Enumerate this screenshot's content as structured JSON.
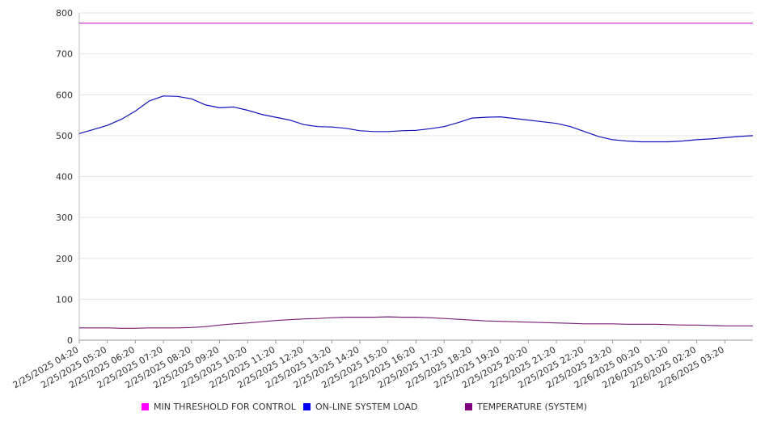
{
  "chart_data": {
    "type": "line",
    "title": "",
    "xlabel": "",
    "ylabel": "",
    "ylim": [
      0,
      800
    ],
    "yticks": [
      0,
      100,
      200,
      300,
      400,
      500,
      600,
      700,
      800
    ],
    "grid": true,
    "legend_position": "bottom",
    "x_tick_labels": [
      "2/25/2025 04:20",
      "2/25/2025 05:20",
      "2/25/2025 06:20",
      "2/25/2025 07:20",
      "2/25/2025 08:20",
      "2/25/2025 09:20",
      "2/25/2025 10:20",
      "2/25/2025 11:20",
      "2/25/2025 12:20",
      "2/25/2025 13:20",
      "2/25/2025 14:20",
      "2/25/2025 15:20",
      "2/25/2025 16:20",
      "2/25/2025 17:20",
      "2/25/2025 18:20",
      "2/25/2025 19:20",
      "2/25/2025 20:20",
      "2/25/2025 21:20",
      "2/25/2025 22:20",
      "2/25/2025 23:20",
      "2/26/2025 00:20",
      "2/26/2025 01:20",
      "2/26/2025 02:20",
      "2/26/2025 03:20"
    ],
    "x_range": [
      "2/25/2025 04:20",
      "2/26/2025 04:20"
    ],
    "x": [
      "2/25/2025 04:20",
      "2/25/2025 04:50",
      "2/25/2025 05:20",
      "2/25/2025 05:50",
      "2/25/2025 06:20",
      "2/25/2025 06:50",
      "2/25/2025 07:20",
      "2/25/2025 07:50",
      "2/25/2025 08:20",
      "2/25/2025 08:50",
      "2/25/2025 09:20",
      "2/25/2025 09:50",
      "2/25/2025 10:20",
      "2/25/2025 10:50",
      "2/25/2025 11:20",
      "2/25/2025 11:50",
      "2/25/2025 12:20",
      "2/25/2025 12:50",
      "2/25/2025 13:20",
      "2/25/2025 13:50",
      "2/25/2025 14:20",
      "2/25/2025 14:50",
      "2/25/2025 15:20",
      "2/25/2025 15:50",
      "2/25/2025 16:20",
      "2/25/2025 16:50",
      "2/25/2025 17:20",
      "2/25/2025 17:50",
      "2/25/2025 18:20",
      "2/25/2025 18:50",
      "2/25/2025 19:20",
      "2/25/2025 19:50",
      "2/25/2025 20:20",
      "2/25/2025 20:50",
      "2/25/2025 21:20",
      "2/25/2025 21:50",
      "2/25/2025 22:20",
      "2/25/2025 22:50",
      "2/25/2025 23:20",
      "2/25/2025 23:50",
      "2/26/2025 00:20",
      "2/26/2025 00:50",
      "2/26/2025 01:20",
      "2/26/2025 01:50",
      "2/26/2025 02:20",
      "2/26/2025 02:50",
      "2/26/2025 03:20",
      "2/26/2025 03:50",
      "2/26/2025 04:20"
    ],
    "series": [
      {
        "name": "MIN THRESHOLD FOR CONTROL",
        "color": "#cc22cc",
        "values": [
          775,
          775,
          775,
          775,
          775,
          775,
          775,
          775,
          775,
          775,
          775,
          775,
          775,
          775,
          775,
          775,
          775,
          775,
          775,
          775,
          775,
          775,
          775,
          775,
          775,
          775,
          775,
          775,
          775,
          775,
          775,
          775,
          775,
          775,
          775,
          775,
          775,
          775,
          775,
          775,
          775,
          775,
          775,
          775,
          775,
          775,
          775,
          775,
          775
        ]
      },
      {
        "name": "ON-LINE SYSTEM LOAD",
        "color": "#1111bb",
        "values": [
          505,
          515,
          525,
          540,
          560,
          585,
          597,
          596,
          590,
          575,
          568,
          570,
          562,
          552,
          545,
          538,
          527,
          522,
          521,
          518,
          512,
          510,
          510,
          512,
          513,
          517,
          522,
          532,
          543,
          545,
          546,
          542,
          538,
          534,
          530,
          522,
          510,
          498,
          490,
          487,
          485,
          485,
          485,
          487,
          490,
          492,
          495,
          498,
          500
        ]
      },
      {
        "name": "TEMPERATURE (SYSTEM)",
        "color": "#7a1d7a",
        "values": [
          30,
          30,
          30,
          29,
          29,
          30,
          30,
          30,
          31,
          33,
          37,
          40,
          42,
          45,
          48,
          50,
          52,
          53,
          55,
          56,
          56,
          56,
          57,
          56,
          56,
          55,
          53,
          51,
          49,
          47,
          46,
          45,
          44,
          43,
          42,
          41,
          40,
          40,
          40,
          39,
          39,
          39,
          38,
          37,
          37,
          36,
          35,
          35,
          35
        ]
      }
    ]
  }
}
